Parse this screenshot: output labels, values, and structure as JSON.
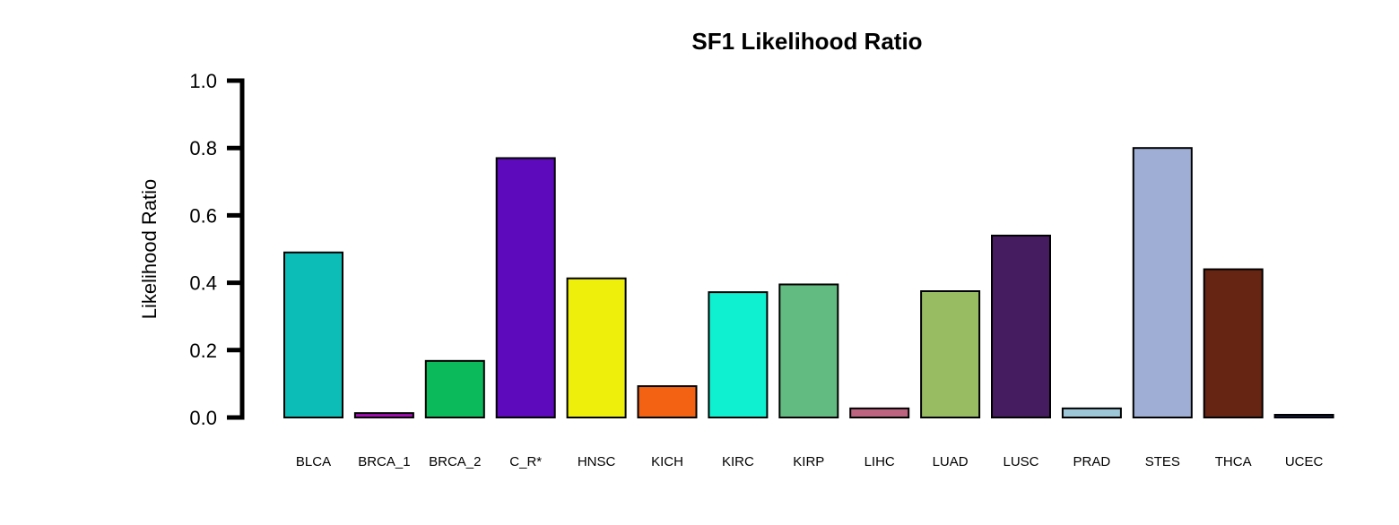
{
  "chart_data": {
    "type": "bar",
    "title": "SF1 Likelihood Ratio",
    "xlabel": "",
    "ylabel": "Likelihood Ratio",
    "ylim": [
      0,
      1
    ],
    "yticks": [
      "0.0",
      "0.2",
      "0.4",
      "0.6",
      "0.8",
      "1.0"
    ],
    "grid": false,
    "legend": "none",
    "categories": [
      "BLCA",
      "BRCA_1",
      "BRCA_2",
      "C_R*",
      "HNSC",
      "KICH",
      "KIRC",
      "KIRP",
      "LIHC",
      "LUAD",
      "LUSC",
      "PRAD",
      "STES",
      "THCA",
      "UCEC"
    ],
    "values": [
      0.49,
      0.013,
      0.168,
      0.77,
      0.413,
      0.093,
      0.372,
      0.395,
      0.027,
      0.375,
      0.54,
      0.027,
      0.8,
      0.44,
      0.008
    ],
    "colors": [
      "#0bbdb6",
      "#a310b1",
      "#0bba5a",
      "#5c0abb",
      "#eef00c",
      "#f26212",
      "#0ff0d0",
      "#62bb80",
      "#bc6480",
      "#97bc62",
      "#461c60",
      "#9dc6d6",
      "#9eaed4",
      "#662412",
      "#12245a"
    ]
  }
}
